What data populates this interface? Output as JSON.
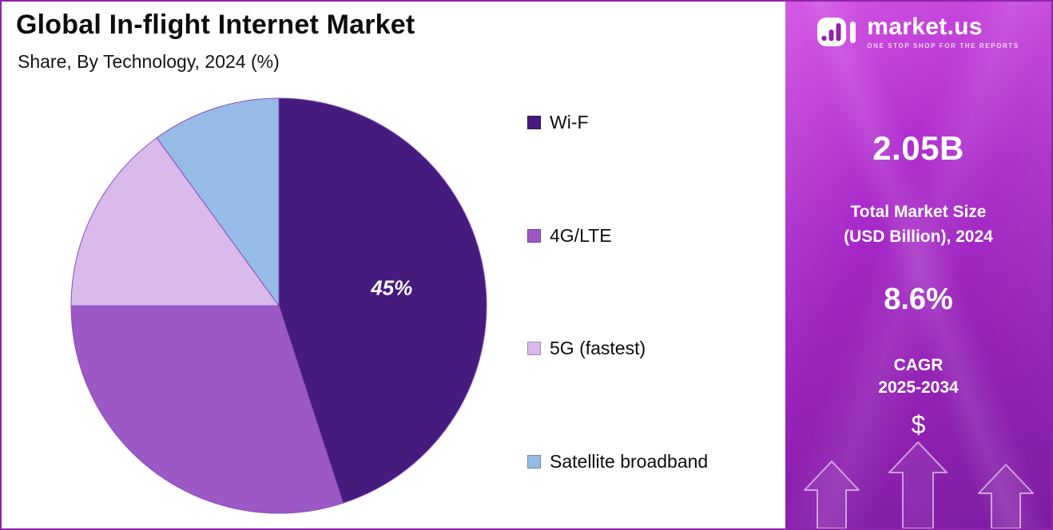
{
  "chart": {
    "title": "Global In-flight Internet Market",
    "subtitle": "Share, By Technology, 2024 (%)"
  },
  "chart_data": {
    "type": "pie",
    "title": "Global In-flight Internet Market",
    "subtitle": "Share, By Technology, 2024 (%)",
    "unit": "%",
    "categories": [
      "Wi-F",
      "4G/LTE",
      "5G (fastest)",
      "Satellite broadband"
    ],
    "values": [
      45,
      30,
      15,
      10
    ],
    "colors": [
      "#461B7E",
      "#9C59C6",
      "#D9BAEB",
      "#95BBE6"
    ],
    "data_labels": [
      "45%",
      "",
      "",
      ""
    ],
    "start_angle_deg": 0,
    "direction": "clockwise",
    "legend_position": "right"
  },
  "sidebar": {
    "logo": {
      "brand": "market.us",
      "tagline": "ONE STOP SHOP FOR THE REPORTS"
    },
    "market_size_value": "2.05B",
    "market_size_label_1": "Total Market Size",
    "market_size_label_2": "(USD Billion), 2024",
    "cagr_value": "8.6%",
    "cagr_label": "CAGR",
    "cagr_period": "2025-2034",
    "currency_symbol": "$",
    "accent_gradient": [
      "#CC3BE0",
      "#7E1CA3"
    ]
  }
}
